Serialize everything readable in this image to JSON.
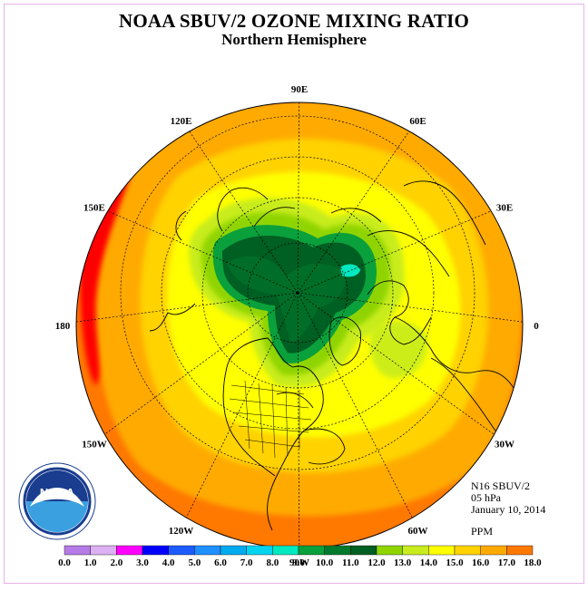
{
  "header": {
    "title": "NOAA SBUV/2 OZONE MIXING RATIO",
    "subtitle": "Northern Hemisphere"
  },
  "meta": {
    "instrument": "N16 SBUV/2",
    "pressure": "05 hPa",
    "date": "January 10, 2014",
    "units": "PPM"
  },
  "logo": {
    "name": "noaa-logo",
    "text": "NOAA"
  },
  "map": {
    "projection": "north polar stereographic",
    "longitude_labels": [
      {
        "text": "90E",
        "lon": 90
      },
      {
        "text": "60E",
        "lon": 60
      },
      {
        "text": "30E",
        "lon": 30
      },
      {
        "text": "0",
        "lon": 0
      },
      {
        "text": "30W",
        "lon": -30
      },
      {
        "text": "60W",
        "lon": -60
      },
      {
        "text": "90W",
        "lon": -90
      },
      {
        "text": "120W",
        "lon": -120
      },
      {
        "text": "150W",
        "lon": -150
      },
      {
        "text": "180",
        "lon": 180
      },
      {
        "text": "150E",
        "lon": 150
      },
      {
        "text": "120E",
        "lon": 120
      }
    ]
  },
  "colorbar": {
    "ticks": [
      "0.0",
      "1.0",
      "2.0",
      "3.0",
      "4.0",
      "5.0",
      "6.0",
      "7.0",
      "8.0",
      "9.0",
      "10.0",
      "11.0",
      "12.0",
      "13.0",
      "14.0",
      "15.0",
      "16.0",
      "17.0",
      "18.0"
    ],
    "colors": [
      "#b67be6",
      "#dcb0f2",
      "#ff00ff",
      "#0000ff",
      "#1e5bff",
      "#1e90ff",
      "#00aaee",
      "#00d4f0",
      "#00e8c0",
      "#0aa03c",
      "#007a2e",
      "#005f22",
      "#8fd400",
      "#c8ec1e",
      "#ffff00",
      "#ffd200",
      "#ffaa00",
      "#ff7800",
      "#ff0000",
      "#8b5a3c"
    ]
  }
}
